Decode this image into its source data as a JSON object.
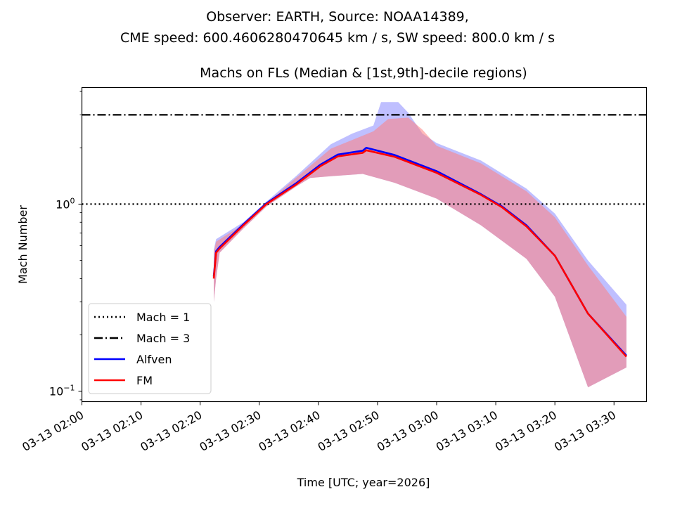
{
  "chart_data": {
    "type": "line",
    "suptitle_lines": [
      "Observer: EARTH, Source: NOAA14389,",
      "CME speed: 600.4606280470645 km / s, SW speed: 800.0 km / s"
    ],
    "title": "Machs on FLs (Median & [1st,9th]-decile regions)",
    "xlabel": "Time [UTC; year=2026]",
    "ylabel": "Mach Number",
    "yscale": "log",
    "ylim": [
      0.088,
      4.2
    ],
    "xlim_minutes_after_0200": [
      0,
      95.5
    ],
    "x_ticks": [
      {
        "minutes": 0,
        "label": "03-13 02:00"
      },
      {
        "minutes": 10,
        "label": "03-13 02:10"
      },
      {
        "minutes": 20,
        "label": "03-13 02:20"
      },
      {
        "minutes": 30,
        "label": "03-13 02:30"
      },
      {
        "minutes": 40,
        "label": "03-13 02:40"
      },
      {
        "minutes": 50,
        "label": "03-13 02:50"
      },
      {
        "minutes": 60,
        "label": "03-13 03:00"
      },
      {
        "minutes": 70,
        "label": "03-13 03:10"
      },
      {
        "minutes": 80,
        "label": "03-13 03:20"
      },
      {
        "minutes": 90,
        "label": "03-13 03:30"
      }
    ],
    "y_ticks": [
      {
        "value": 1.0,
        "label_base": "10",
        "label_exp": "0"
      },
      {
        "value": 0.1,
        "label_base": "10",
        "label_exp": "−1"
      }
    ],
    "reference_lines": [
      {
        "name": "Mach = 1",
        "value": 1,
        "style": "dotted",
        "color": "#000000"
      },
      {
        "name": "Mach = 3",
        "value": 3,
        "style": "dashdot",
        "color": "#000000"
      }
    ],
    "series": [
      {
        "name": "Alfven",
        "color": "#0000ff",
        "band_color": "#8080ff",
        "x_minutes": [
          22.3,
          22.7,
          23.3,
          27.3,
          31.2,
          36.2,
          40.4,
          43.3,
          47.5,
          48.1,
          52.9,
          60.0,
          67.5,
          71.1,
          75.2,
          80.0,
          85.6,
          92.1
        ],
        "median": [
          0.41,
          0.56,
          0.59,
          0.78,
          1.01,
          1.29,
          1.63,
          1.84,
          1.93,
          2.0,
          1.83,
          1.5,
          1.13,
          0.97,
          0.77,
          0.53,
          0.26,
          0.155
        ],
        "band_x_minutes": [
          22.3,
          22.7,
          27.3,
          31.2,
          36.2,
          42.1,
          45.7,
          49.3,
          50.6,
          53.5,
          55.2,
          57.6,
          60.0,
          67.5,
          75.2,
          80.0,
          85.6,
          92.1
        ],
        "upper": [
          0.57,
          0.65,
          0.8,
          1.03,
          1.41,
          2.09,
          2.38,
          2.63,
          3.51,
          3.51,
          3.08,
          2.38,
          2.12,
          1.71,
          1.21,
          0.89,
          0.5,
          0.29
        ],
        "lower_x_minutes": [
          22.3,
          22.7,
          23.3,
          27.3,
          31.2,
          36.2,
          38.6,
          42.1,
          47.5,
          52.9,
          60.0,
          67.5,
          75.2,
          80.0,
          85.6,
          92.1
        ],
        "lower": [
          0.3,
          0.4,
          0.55,
          0.74,
          0.97,
          1.24,
          1.38,
          1.41,
          1.45,
          1.3,
          1.07,
          0.77,
          0.51,
          0.32,
          0.105,
          0.134
        ]
      },
      {
        "name": "FM",
        "color": "#ff0000",
        "band_color": "#ff8080",
        "x_minutes": [
          22.3,
          22.7,
          23.3,
          27.3,
          31.2,
          36.2,
          40.4,
          43.3,
          47.5,
          48.1,
          52.9,
          60.0,
          67.5,
          71.1,
          75.2,
          80.0,
          85.6,
          92.1
        ],
        "median": [
          0.4,
          0.55,
          0.58,
          0.77,
          1.0,
          1.27,
          1.6,
          1.8,
          1.88,
          1.94,
          1.79,
          1.47,
          1.12,
          0.96,
          0.76,
          0.53,
          0.26,
          0.153
        ],
        "band_x_minutes": [
          22.3,
          22.7,
          27.3,
          31.2,
          36.2,
          42.1,
          45.7,
          49.3,
          51.8,
          55.2,
          57.6,
          60.0,
          67.5,
          75.2,
          80.0,
          85.6,
          92.1
        ],
        "upper": [
          0.55,
          0.63,
          0.78,
          1.01,
          1.38,
          1.98,
          2.2,
          2.45,
          2.85,
          2.9,
          2.5,
          2.05,
          1.65,
          1.17,
          0.85,
          0.47,
          0.25
        ],
        "lower_x_minutes": [
          22.3,
          22.7,
          23.3,
          27.3,
          31.2,
          36.2,
          38.6,
          42.1,
          47.5,
          52.9,
          60.0,
          67.5,
          75.2,
          80.0,
          85.6,
          92.1
        ],
        "lower": [
          0.3,
          0.4,
          0.55,
          0.74,
          0.97,
          1.24,
          1.38,
          1.41,
          1.45,
          1.3,
          1.07,
          0.77,
          0.51,
          0.32,
          0.105,
          0.134
        ]
      }
    ],
    "legend": {
      "placement": "lower-left",
      "entries": [
        {
          "label": "Mach = 1",
          "style": "dotted",
          "color": "#000000"
        },
        {
          "label": "Mach = 3",
          "style": "dashdot",
          "color": "#000000"
        },
        {
          "label": "Alfven",
          "style": "solid",
          "color": "#0000ff"
        },
        {
          "label": "FM",
          "style": "solid",
          "color": "#ff0000"
        }
      ]
    },
    "grid": false
  }
}
